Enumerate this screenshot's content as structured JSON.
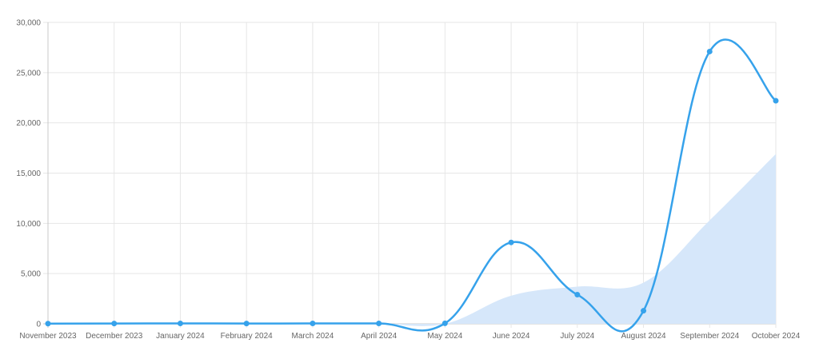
{
  "chart_data": {
    "type": "line",
    "title": "",
    "xlabel": "",
    "ylabel": "",
    "categories": [
      "November 2023",
      "December 2023",
      "January 2024",
      "February 2024",
      "March 2024",
      "April 2024",
      "May 2024",
      "June 2024",
      "July 2024",
      "August 2024",
      "September 2024",
      "October 2024"
    ],
    "series": [
      {
        "type": "line",
        "color": "#36a2eb",
        "values": [
          20,
          30,
          40,
          30,
          40,
          40,
          50,
          8100,
          2900,
          1300,
          27100,
          22200
        ]
      },
      {
        "type": "area",
        "color": "#d6e7fa",
        "values": [
          0,
          0,
          0,
          0,
          0,
          0,
          0,
          2800,
          3700,
          4100,
          10300,
          16900
        ]
      }
    ],
    "ylim": [
      0,
      30000
    ],
    "yticks": [
      "0",
      "5,000",
      "10,000",
      "15,000",
      "20,000",
      "25,000",
      "30,000"
    ],
    "grid": true
  }
}
